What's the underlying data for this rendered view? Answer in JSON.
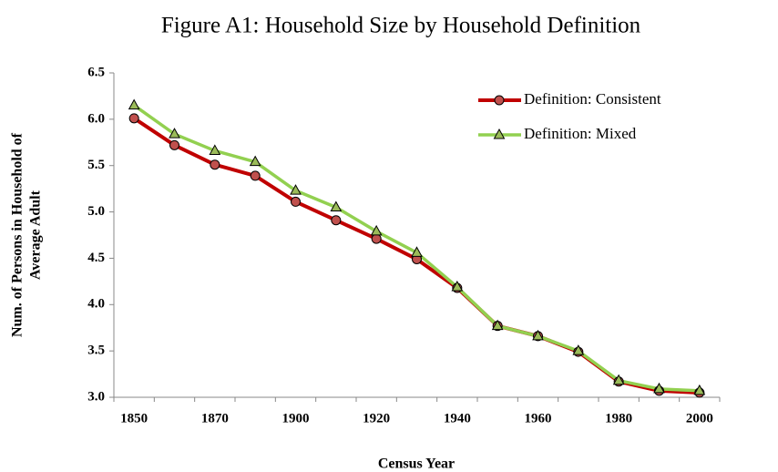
{
  "chart_data": {
    "type": "line",
    "title": "Figure A1: Household Size by Household Definition",
    "y_label": [
      "Num. of Persons in Household of",
      "Average Adult"
    ],
    "x_label": "Census Year",
    "categories": [
      "1850",
      null,
      "1870",
      null,
      "1900",
      null,
      "1920",
      null,
      "1940",
      null,
      "1960",
      null,
      "1980",
      null,
      "2000"
    ],
    "series": [
      {
        "name": "Definition: Consistent",
        "color": "#c00000",
        "marker": "circle",
        "marker_color": "#c0504d",
        "values": [
          6.01,
          5.72,
          5.51,
          5.39,
          5.11,
          4.91,
          4.71,
          4.49,
          4.18,
          3.77,
          3.66,
          3.49,
          3.17,
          3.07,
          3.05
        ]
      },
      {
        "name": "Definition: Mixed",
        "color": "#92d050",
        "marker": "triangle",
        "marker_color": "#9bbb59",
        "values": [
          6.15,
          5.84,
          5.66,
          5.54,
          5.23,
          5.05,
          4.79,
          4.56,
          4.19,
          3.77,
          3.66,
          3.5,
          3.18,
          3.09,
          3.07
        ]
      }
    ],
    "ylim": [
      3.0,
      6.5
    ],
    "yticks": [
      {
        "value": 3.0,
        "label": "3.0"
      },
      3.5,
      {
        "value": 4.0,
        "label": "4.0"
      },
      4.5,
      {
        "value": 5.0,
        "label": "5.0"
      },
      5.5,
      {
        "value": 6.0,
        "label": "6.0"
      },
      6.5
    ],
    "grid": false,
    "legend": "top-right"
  }
}
